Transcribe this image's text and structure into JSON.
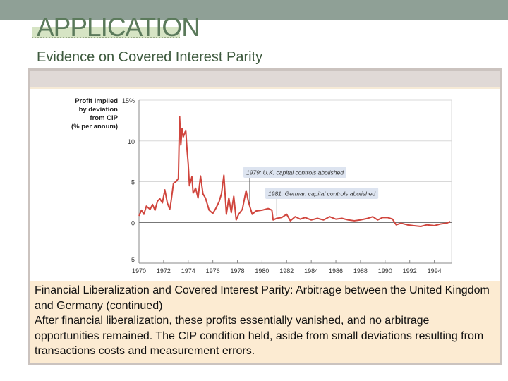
{
  "header": {
    "title": "APPLICATION",
    "subtitle": "Evidence on Covered Interest Parity"
  },
  "colors": {
    "topbar": "#8fa096",
    "series": "#d0453d",
    "annotation_bg": "#dde4f0",
    "caption_bg": "#fcebd2"
  },
  "chart_data": {
    "type": "line",
    "ylabel": [
      "Profit implied",
      "by deviation",
      "from CIP",
      "(% per annum)"
    ],
    "xlim": [
      1970,
      1995.4
    ],
    "ylim": [
      -5,
      15
    ],
    "x_ticks": [
      "1970",
      "1972",
      "1974",
      "1976",
      "1978",
      "1980",
      "1982",
      "1984",
      "1986",
      "1988",
      "1990",
      "1992",
      "1994"
    ],
    "y_ticks": [
      {
        "value": 15,
        "label": "15%"
      },
      {
        "value": 10,
        "label": "10"
      },
      {
        "value": 5,
        "label": "5"
      },
      {
        "value": 0,
        "label": "0"
      },
      {
        "value": -5,
        "label": "5"
      }
    ],
    "grid": true,
    "annotations": [
      {
        "x": 1979.0,
        "y": 2.3,
        "text": "1979: U.K. capital controls abolished"
      },
      {
        "x": 1981.2,
        "y": 0.8,
        "text": "1981: German capital controls abolished"
      }
    ],
    "series": [
      {
        "x": [
          1970.0,
          1970.2,
          1970.4,
          1970.6,
          1970.9,
          1971.1,
          1971.3,
          1971.5,
          1971.7,
          1971.9,
          1972.1,
          1972.3,
          1972.5,
          1972.6,
          1972.8,
          1973.0,
          1973.2,
          1973.3,
          1973.4,
          1973.5,
          1973.6,
          1973.8,
          1973.9,
          1974.0,
          1974.1,
          1974.3,
          1974.4,
          1974.6,
          1974.8,
          1975.0,
          1975.2,
          1975.4,
          1975.7,
          1976.0,
          1976.2,
          1976.5,
          1976.7,
          1976.9,
          1977.1,
          1977.3,
          1977.5,
          1977.7,
          1977.9,
          1978.1,
          1978.4,
          1978.7,
          1978.9,
          1979.2,
          1979.5,
          1980.0,
          1980.5,
          1980.8,
          1980.9,
          1981.2,
          1981.6,
          1982.0,
          1982.3,
          1982.7,
          1983.1,
          1983.5,
          1984.0,
          1984.5,
          1985.0,
          1985.5,
          1986.0,
          1986.5,
          1987.0,
          1987.5,
          1988.0,
          1988.6,
          1989.0,
          1989.4,
          1989.8,
          1990.2,
          1990.6,
          1990.9,
          1991.3,
          1991.8,
          1992.3,
          1992.9,
          1993.4,
          1994.0,
          1994.5,
          1995.0,
          1995.3
        ],
        "y": [
          0.8,
          1.5,
          1.0,
          2.0,
          1.6,
          2.2,
          1.5,
          2.6,
          2.9,
          2.4,
          4.0,
          2.4,
          1.6,
          2.5,
          4.8,
          5.0,
          5.4,
          13.0,
          9.5,
          11.5,
          10.5,
          11.3,
          9.0,
          7.2,
          4.5,
          5.6,
          3.6,
          4.2,
          3.0,
          5.7,
          3.5,
          3.0,
          1.5,
          1.1,
          1.6,
          2.5,
          3.5,
          5.8,
          1.0,
          3.0,
          1.2,
          3.2,
          0.3,
          1.0,
          1.6,
          3.9,
          2.5,
          1.0,
          1.4,
          1.5,
          1.7,
          1.5,
          0.3,
          0.5,
          0.6,
          1.0,
          0.2,
          0.7,
          0.4,
          0.6,
          0.3,
          0.5,
          0.3,
          0.7,
          0.4,
          0.5,
          0.3,
          0.2,
          0.3,
          0.5,
          0.7,
          0.3,
          0.6,
          0.6,
          0.4,
          -0.3,
          -0.1,
          -0.3,
          -0.4,
          -0.5,
          -0.3,
          -0.4,
          -0.2,
          -0.1,
          0.1
        ]
      }
    ]
  },
  "caption": {
    "heading": "Financial Liberalization and Covered Interest Parity: Arbitrage between the United Kingdom and Germany (continued)",
    "body": "After financial liberalization, these profits essentially vanished, and no arbitrage opportunities remained. The CIP condition held, aside from small deviations resulting from transactions costs and measurement errors."
  }
}
